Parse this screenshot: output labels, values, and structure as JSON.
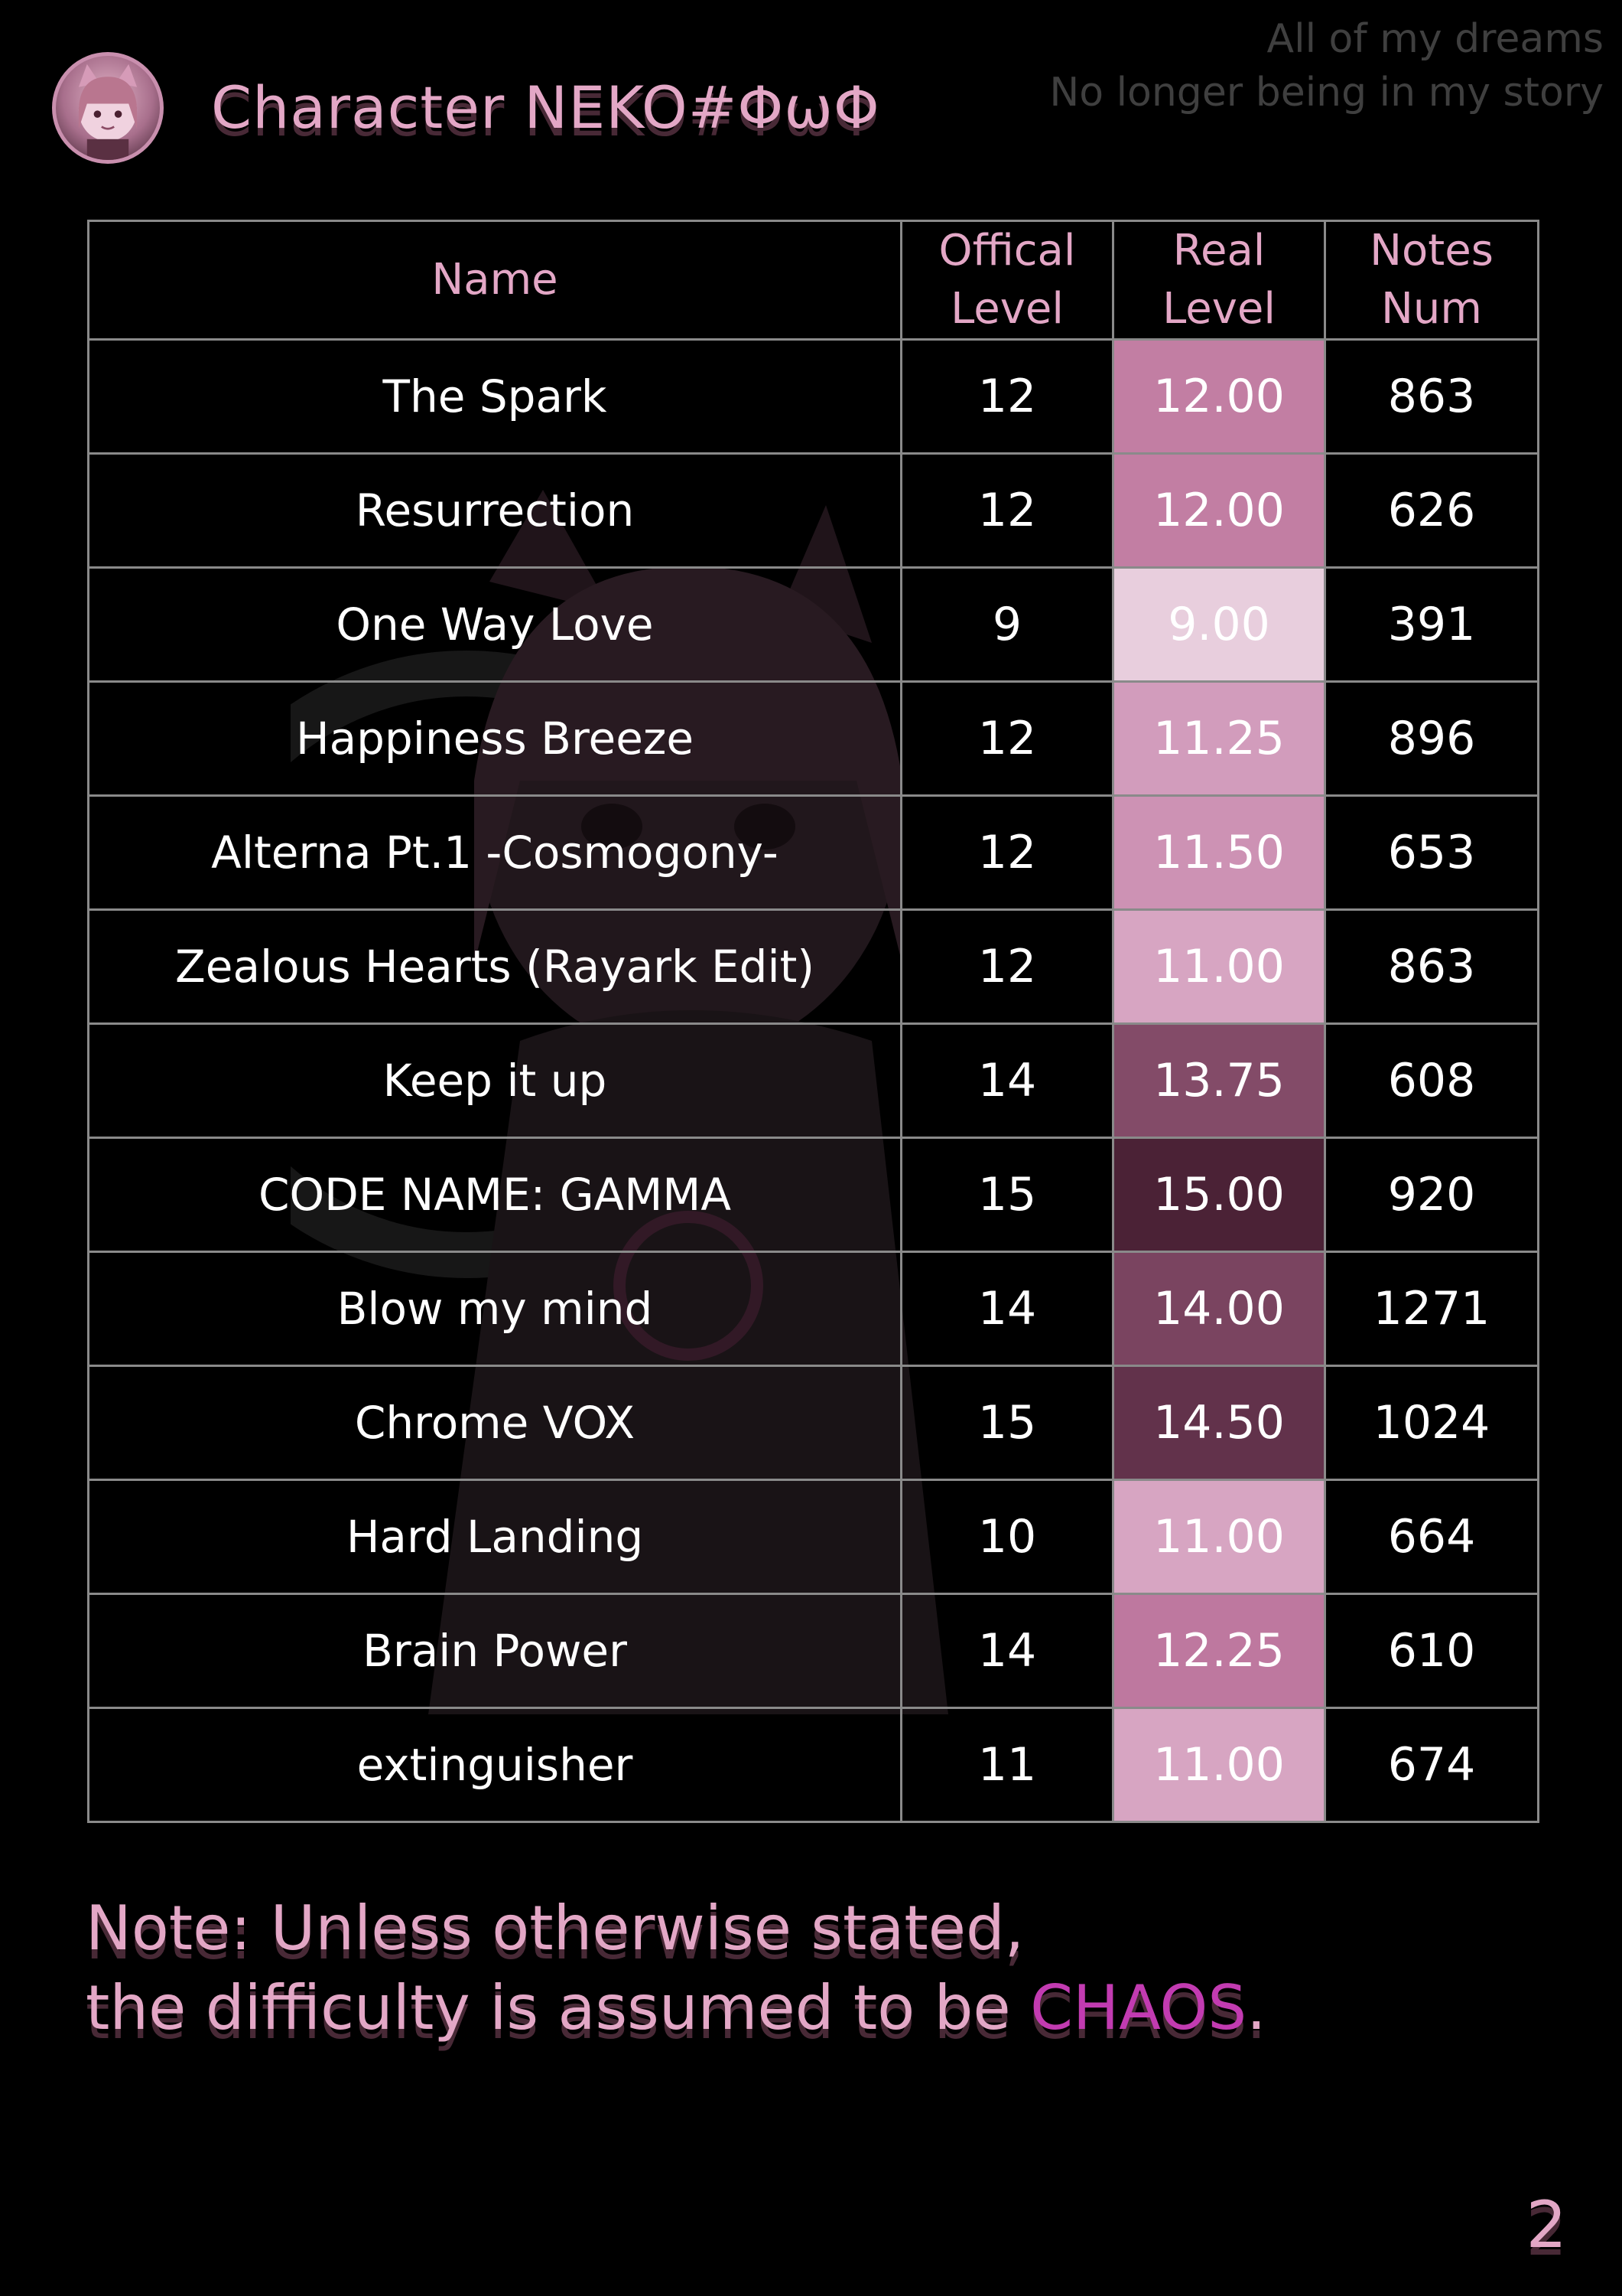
{
  "header": {
    "title": "Character NEKO#ΦωΦ",
    "lyrics": [
      "All of my dreams",
      "No longer being in my story"
    ]
  },
  "table": {
    "columns": [
      "Name",
      "Offical\nLevel",
      "Real\nLevel",
      "Notes\nNum"
    ],
    "rows": [
      {
        "name": "The Spark",
        "official": "12",
        "real": "12.00",
        "notes": "863",
        "color": "#c27ea3"
      },
      {
        "name": "Resurrection",
        "official": "12",
        "real": "12.00",
        "notes": "626",
        "color": "#c27ea3"
      },
      {
        "name": "One Way Love",
        "official": "9",
        "real": "9.00",
        "notes": "391",
        "color": "#e8cedd"
      },
      {
        "name": "Happiness Breeze",
        "official": "12",
        "real": "11.25",
        "notes": "896",
        "color": "#d29cbc"
      },
      {
        "name": "Alterna Pt.1 -Cosmogony-",
        "official": "12",
        "real": "11.50",
        "notes": "653",
        "color": "#cd92b4"
      },
      {
        "name": "Zealous Hearts (Rayark Edit)",
        "official": "12",
        "real": "11.00",
        "notes": "863",
        "color": "#d7a5c2"
      },
      {
        "name": "Keep it up",
        "official": "14",
        "real": "13.75",
        "notes": "608",
        "color": "#834b68"
      },
      {
        "name": "CODE NAME: GAMMA",
        "official": "15",
        "real": "15.00",
        "notes": "920",
        "color": "#4b2236"
      },
      {
        "name": "Blow my mind",
        "official": "14",
        "real": "14.00",
        "notes": "1271",
        "color": "#7a4460"
      },
      {
        "name": "Chrome VOX",
        "official": "15",
        "real": "14.50",
        "notes": "1024",
        "color": "#62324b"
      },
      {
        "name": "Hard Landing",
        "official": "10",
        "real": "11.00",
        "notes": "664",
        "color": "#d7a5c2"
      },
      {
        "name": "Brain Power",
        "official": "14",
        "real": "12.25",
        "notes": "610",
        "color": "#be789f"
      },
      {
        "name": "extinguisher",
        "official": "11",
        "real": "11.00",
        "notes": "674",
        "color": "#d7a5c2"
      }
    ]
  },
  "note": {
    "line1": "Note: Unless otherwise stated,",
    "line2_prefix": "the difficulty is assumed to be ",
    "highlight": "CHAOS",
    "line2_suffix": ".",
    "highlight_color": "#c23bb1"
  },
  "page_number": "2",
  "colors": {
    "background": "#000000",
    "accent_pink": "#e3a7c6",
    "grid": "#8a8a8a"
  }
}
